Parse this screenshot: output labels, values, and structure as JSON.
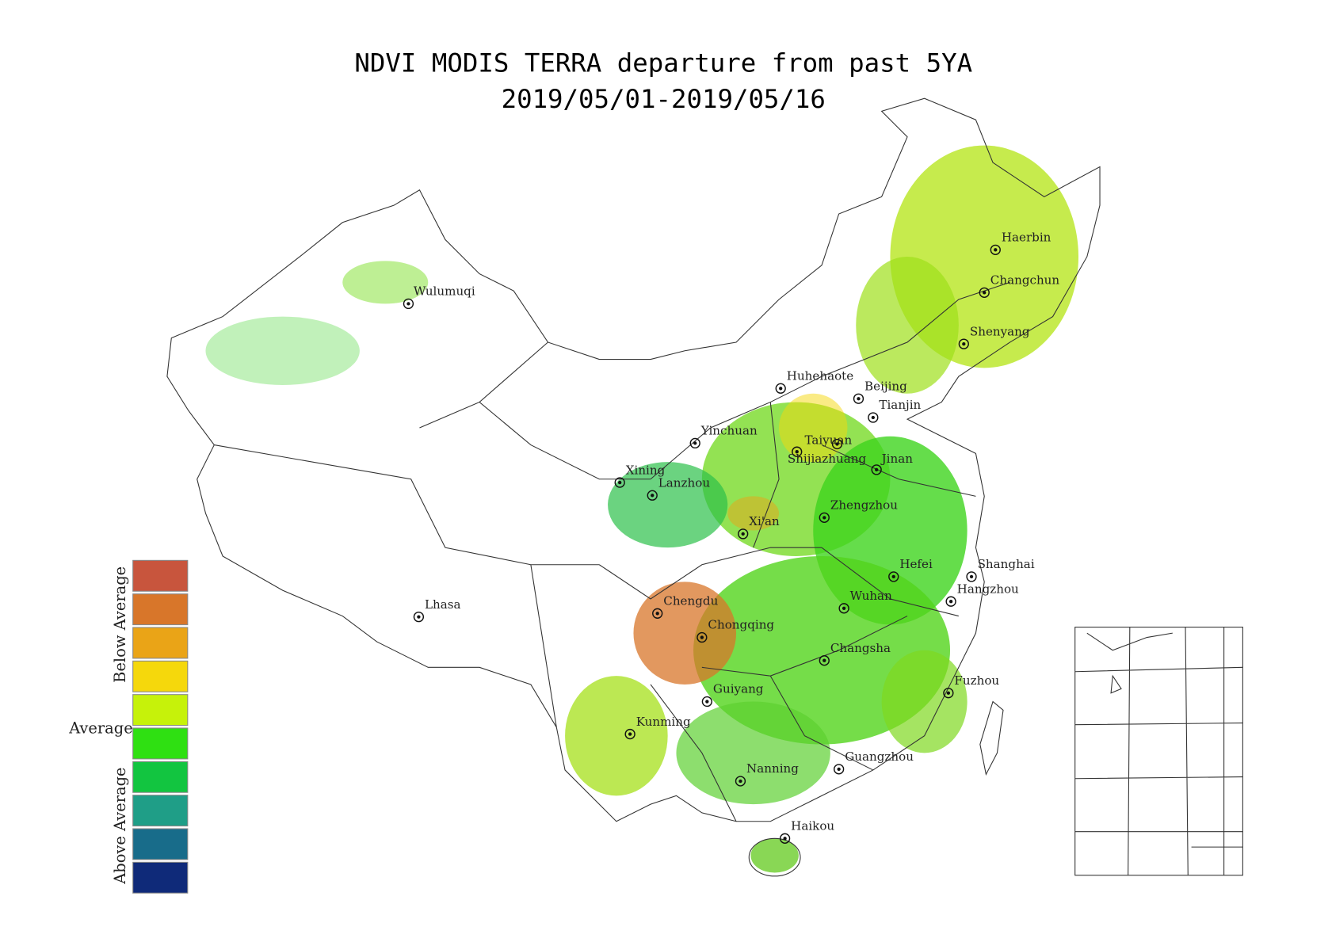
{
  "title": [
    "NDVI MODIS TERRA departure from past 5YA",
    "2019/05/01-2019/05/16"
  ],
  "cities": [
    "Wulumuqi",
    "Haerbin",
    "Changchun",
    "Shenyang",
    "Huhehaote",
    "Beijing",
    "Tianjin",
    "Yinchuan",
    "Taiyuan",
    "Shijiazhuang",
    "Jinan",
    "Xining",
    "Lanzhou",
    "Zhengzhou",
    "Xi'an",
    "Hefei",
    "Shanghai",
    "Hangzhou",
    "Lhasa",
    "Chengdu",
    "Wuhan",
    "Chongqing",
    "Changsha",
    "Fuzhou",
    "Guiyang",
    "Kunming",
    "Guangzhou",
    "Nanning",
    "Haikou"
  ],
  "legend": {
    "labels": [
      "Below Average",
      "Average",
      "Above Average"
    ],
    "colors": [
      "#c8553d",
      "#d8762a",
      "#eaa417",
      "#f5d80c",
      "#c6f20a",
      "#2fe012",
      "#12c540",
      "#1f9e87",
      "#186c8a",
      "#0f2a79"
    ]
  }
}
